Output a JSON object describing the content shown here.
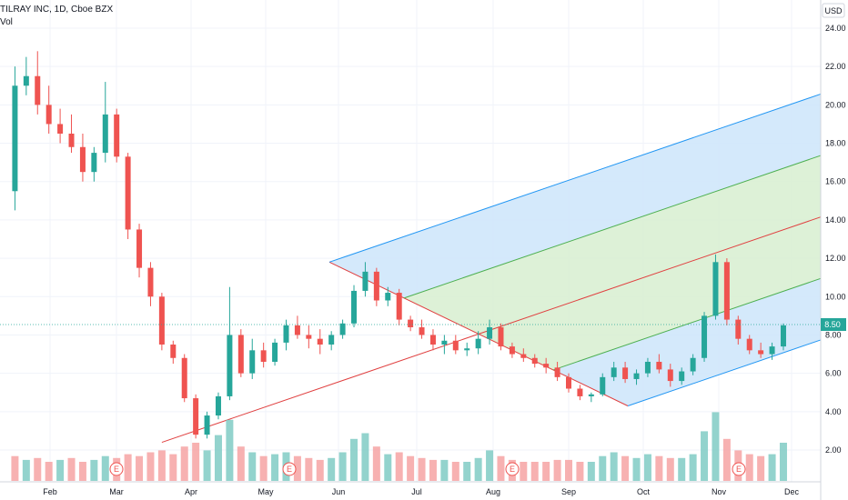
{
  "header": {
    "symbol_line": "TILRAY INC, 1D, Cboe BZX",
    "volume_label": "Vol",
    "currency": "USD"
  },
  "chart_data": {
    "type": "candlestick",
    "symbol": "TILRAY INC",
    "interval": "1D",
    "exchange": "Cboe BZX",
    "currency": "USD",
    "current_price": 8.5,
    "current_price_label": "8.50",
    "y_ticks": [
      "24.00",
      "22.00",
      "20.00",
      "18.00",
      "16.00",
      "14.00",
      "12.00",
      "10.00",
      "8.00",
      "6.00",
      "4.00",
      "2.00"
    ],
    "y_tick_values": [
      24,
      22,
      20,
      18,
      16,
      14,
      12,
      10,
      8,
      6,
      4,
      2
    ],
    "ylim": [
      0.8,
      25.0
    ],
    "x_ticks": [
      "Feb",
      "Mar",
      "Apr",
      "May",
      "Jun",
      "Jul",
      "Aug",
      "Sep",
      "Oct",
      "Nov",
      "Dec"
    ],
    "earnings_marker": "E",
    "earnings_months": [
      "Mar",
      "May",
      "Aug",
      "Nov"
    ],
    "colors": {
      "up": "#26a69a",
      "down": "#ef5350",
      "vol_up": "#80cbc4",
      "vol_down": "#f6a3a3",
      "pitchfork_median": "#e04040",
      "pitchfork_inner": "#4caf50",
      "pitchfork_outer": "#2196f3",
      "fill_outer": "#cfe7fb",
      "fill_inner": "#d9efd3",
      "price_label_bg": "#26a69a",
      "earnings_marker": "#ef5350"
    },
    "price_series": [
      [
        2,
        15.5,
        22.0,
        14.5,
        21.0
      ],
      [
        4,
        21.0,
        22.5,
        20.5,
        21.5
      ],
      [
        6,
        21.5,
        22.8,
        19.5,
        20.0
      ],
      [
        8,
        20.0,
        21.0,
        18.5,
        19.0
      ],
      [
        10,
        19.0,
        19.8,
        18.0,
        18.5
      ],
      [
        12,
        18.5,
        19.5,
        17.5,
        17.8
      ],
      [
        14,
        17.8,
        18.5,
        16.0,
        16.5
      ],
      [
        16,
        16.5,
        17.8,
        16.0,
        17.5
      ],
      [
        18,
        17.5,
        21.2,
        17.0,
        19.5
      ],
      [
        20,
        19.5,
        19.8,
        17.0,
        17.3
      ],
      [
        22,
        17.3,
        17.5,
        13.0,
        13.5
      ],
      [
        24,
        13.5,
        13.8,
        11.0,
        11.5
      ],
      [
        26,
        11.5,
        11.8,
        9.5,
        10.0
      ],
      [
        28,
        10.0,
        10.2,
        7.2,
        7.5
      ],
      [
        30,
        7.5,
        7.7,
        6.5,
        6.8
      ],
      [
        32,
        6.8,
        7.0,
        4.5,
        4.7
      ],
      [
        34,
        4.7,
        4.9,
        2.6,
        2.8
      ],
      [
        36,
        2.8,
        4.0,
        2.6,
        3.8
      ],
      [
        38,
        3.8,
        5.0,
        3.6,
        4.8
      ],
      [
        40,
        4.8,
        10.5,
        4.6,
        8.0
      ],
      [
        42,
        8.0,
        8.3,
        5.8,
        6.0
      ],
      [
        44,
        6.0,
        7.8,
        5.7,
        7.2
      ],
      [
        46,
        7.2,
        7.6,
        6.3,
        6.6
      ],
      [
        48,
        6.6,
        7.8,
        6.4,
        7.6
      ],
      [
        50,
        7.6,
        8.8,
        7.2,
        8.5
      ],
      [
        52,
        8.5,
        9.0,
        7.8,
        8.0
      ],
      [
        54,
        8.0,
        8.5,
        7.3,
        7.8
      ],
      [
        56,
        7.8,
        8.3,
        7.0,
        7.5
      ],
      [
        58,
        7.5,
        8.2,
        7.2,
        8.0
      ],
      [
        60,
        8.0,
        8.8,
        7.8,
        8.6
      ],
      [
        62,
        8.6,
        10.6,
        8.4,
        10.3
      ],
      [
        64,
        10.3,
        11.8,
        10.0,
        11.3
      ],
      [
        66,
        11.3,
        11.5,
        9.5,
        9.8
      ],
      [
        68,
        9.8,
        10.5,
        9.5,
        10.2
      ],
      [
        70,
        10.2,
        10.4,
        8.5,
        8.8
      ],
      [
        72,
        8.8,
        9.0,
        8.2,
        8.4
      ],
      [
        74,
        8.4,
        8.8,
        7.8,
        8.0
      ],
      [
        76,
        8.0,
        8.3,
        7.2,
        7.5
      ],
      [
        78,
        7.5,
        8.0,
        7.0,
        7.7
      ],
      [
        80,
        7.7,
        8.0,
        7.0,
        7.2
      ],
      [
        82,
        7.2,
        7.6,
        6.9,
        7.3
      ],
      [
        84,
        7.3,
        8.2,
        7.0,
        7.8
      ],
      [
        86,
        7.8,
        8.8,
        7.5,
        8.4
      ],
      [
        88,
        8.4,
        8.6,
        7.2,
        7.4
      ],
      [
        90,
        7.4,
        7.6,
        6.8,
        7.0
      ],
      [
        92,
        7.0,
        7.3,
        6.6,
        6.8
      ],
      [
        94,
        6.8,
        7.0,
        6.3,
        6.5
      ],
      [
        96,
        6.5,
        6.8,
        6.0,
        6.3
      ],
      [
        98,
        6.3,
        6.6,
        5.6,
        5.8
      ],
      [
        100,
        5.8,
        6.0,
        5.0,
        5.2
      ],
      [
        102,
        5.2,
        5.4,
        4.6,
        4.8
      ],
      [
        104,
        4.8,
        5.0,
        4.5,
        4.9
      ],
      [
        106,
        4.9,
        6.0,
        4.8,
        5.8
      ],
      [
        108,
        5.8,
        6.6,
        5.6,
        6.3
      ],
      [
        110,
        6.3,
        6.6,
        5.5,
        5.7
      ],
      [
        112,
        5.7,
        6.2,
        5.4,
        6.0
      ],
      [
        114,
        6.0,
        6.8,
        5.8,
        6.6
      ],
      [
        116,
        6.6,
        7.0,
        6.0,
        6.2
      ],
      [
        118,
        6.2,
        6.5,
        5.3,
        5.6
      ],
      [
        120,
        5.6,
        6.3,
        5.4,
        6.1
      ],
      [
        122,
        6.1,
        7.0,
        5.9,
        6.8
      ],
      [
        124,
        6.8,
        9.2,
        6.6,
        9.0
      ],
      [
        126,
        9.0,
        12.2,
        8.8,
        11.8
      ],
      [
        128,
        11.8,
        12.0,
        8.5,
        8.8
      ],
      [
        130,
        8.8,
        9.0,
        7.5,
        7.8
      ],
      [
        132,
        7.8,
        8.0,
        7.0,
        7.2
      ],
      [
        134,
        7.2,
        7.6,
        6.8,
        7.0
      ],
      [
        136,
        7.0,
        7.6,
        6.7,
        7.4
      ],
      [
        138,
        7.4,
        8.6,
        7.2,
        8.5
      ]
    ],
    "volume_series": [
      [
        2,
        1.3,
        0
      ],
      [
        4,
        1.1,
        1
      ],
      [
        6,
        1.2,
        0
      ],
      [
        8,
        1.0,
        0
      ],
      [
        10,
        1.1,
        1
      ],
      [
        12,
        1.2,
        0
      ],
      [
        14,
        1.0,
        0
      ],
      [
        16,
        1.1,
        1
      ],
      [
        18,
        1.3,
        1
      ],
      [
        20,
        1.2,
        0
      ],
      [
        22,
        1.4,
        0
      ],
      [
        24,
        1.3,
        0
      ],
      [
        26,
        1.5,
        0
      ],
      [
        28,
        1.6,
        0
      ],
      [
        30,
        1.4,
        0
      ],
      [
        32,
        1.8,
        0
      ],
      [
        34,
        2.0,
        0
      ],
      [
        36,
        1.6,
        1
      ],
      [
        38,
        2.4,
        1
      ],
      [
        40,
        3.2,
        1
      ],
      [
        42,
        1.8,
        0
      ],
      [
        44,
        1.5,
        1
      ],
      [
        46,
        1.3,
        0
      ],
      [
        48,
        1.4,
        1
      ],
      [
        50,
        1.5,
        1
      ],
      [
        52,
        1.3,
        0
      ],
      [
        54,
        1.2,
        0
      ],
      [
        56,
        1.1,
        0
      ],
      [
        58,
        1.2,
        1
      ],
      [
        60,
        1.5,
        1
      ],
      [
        62,
        2.2,
        1
      ],
      [
        64,
        2.5,
        1
      ],
      [
        66,
        1.8,
        0
      ],
      [
        68,
        1.4,
        1
      ],
      [
        70,
        1.5,
        0
      ],
      [
        72,
        1.3,
        0
      ],
      [
        74,
        1.2,
        0
      ],
      [
        76,
        1.1,
        0
      ],
      [
        78,
        1.1,
        1
      ],
      [
        80,
        1.0,
        0
      ],
      [
        82,
        1.0,
        1
      ],
      [
        84,
        1.2,
        1
      ],
      [
        86,
        1.6,
        1
      ],
      [
        88,
        1.3,
        0
      ],
      [
        90,
        1.1,
        0
      ],
      [
        92,
        1.0,
        0
      ],
      [
        94,
        1.0,
        0
      ],
      [
        96,
        1.0,
        0
      ],
      [
        98,
        1.1,
        0
      ],
      [
        100,
        1.1,
        0
      ],
      [
        102,
        1.0,
        0
      ],
      [
        104,
        1.0,
        1
      ],
      [
        106,
        1.3,
        1
      ],
      [
        108,
        1.5,
        1
      ],
      [
        110,
        1.3,
        0
      ],
      [
        112,
        1.2,
        1
      ],
      [
        114,
        1.4,
        1
      ],
      [
        116,
        1.3,
        0
      ],
      [
        118,
        1.2,
        0
      ],
      [
        120,
        1.2,
        1
      ],
      [
        122,
        1.4,
        1
      ],
      [
        124,
        2.6,
        1
      ],
      [
        126,
        3.6,
        1
      ],
      [
        128,
        2.2,
        0
      ],
      [
        130,
        1.6,
        0
      ],
      [
        132,
        1.4,
        0
      ],
      [
        134,
        1.3,
        0
      ],
      [
        136,
        1.4,
        1
      ],
      [
        138,
        2.0,
        1
      ]
    ]
  }
}
